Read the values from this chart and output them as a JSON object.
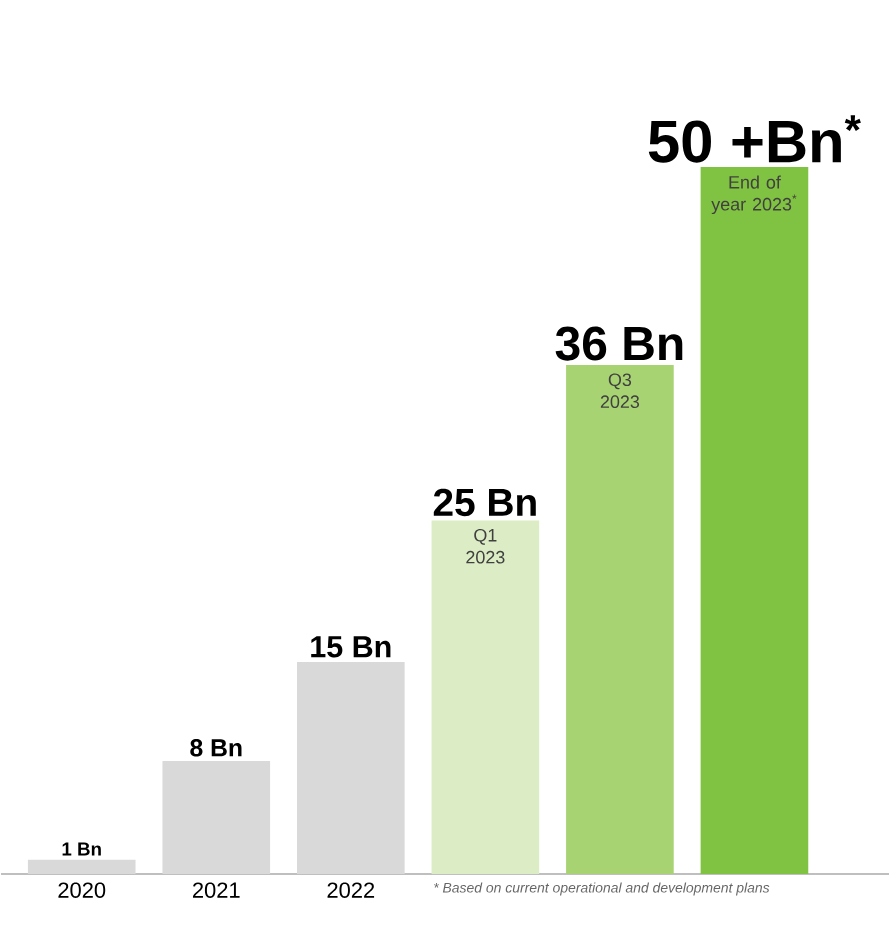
{
  "chart_data": {
    "type": "bar",
    "categories": [
      "2020",
      "2021",
      "2022",
      "Q1 2023",
      "Q3 2023",
      "End of year 2023$^{*}$"
    ],
    "values": [
      1,
      8,
      15,
      25,
      36,
      50
    ],
    "value_labels": [
      "1 Bn",
      "8 Bn",
      "15 Bn",
      "25 Bn",
      "36 Bn",
      "50 +Bn$^{*}$"
    ],
    "colors": [
      "#d9d9d9",
      "#d9d9d9",
      "#d9d9d9",
      "#dcecc4",
      "#a8d373",
      "#80c241"
    ],
    "annotations": [
      "* Based on current operational and development plans"
    ]
  }
}
